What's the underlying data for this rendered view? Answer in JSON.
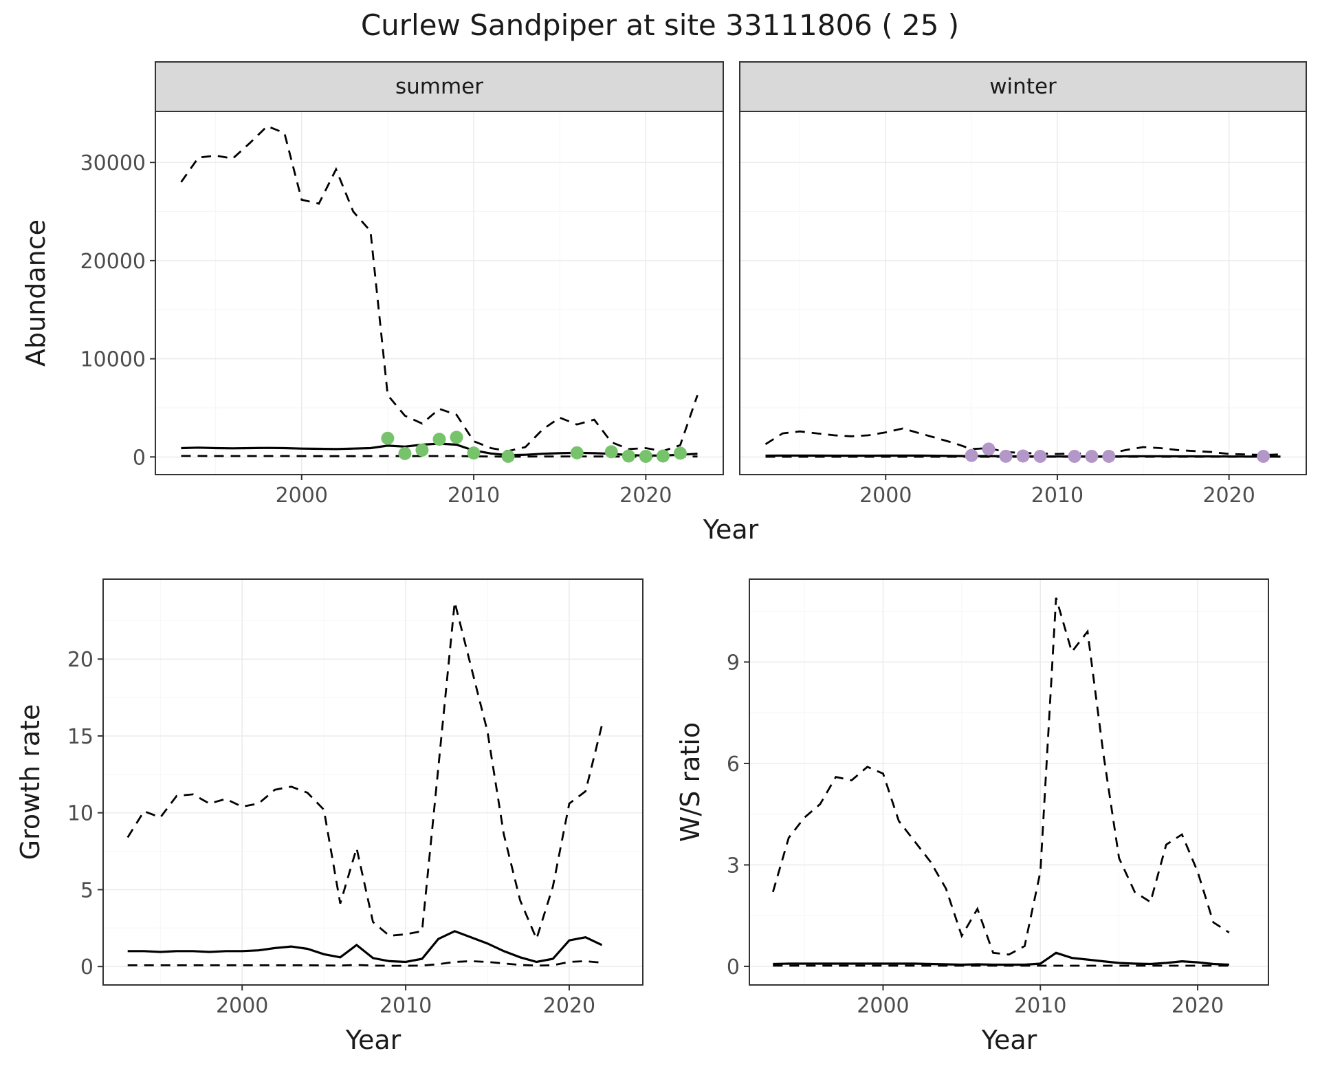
{
  "figure": {
    "title": "Curlew Sandpiper at site 33111806 ( 25 )"
  },
  "colors": {
    "summer_points": "#77C36B",
    "winter_points": "#B497C9",
    "line": "#000000",
    "strip_bg": "#D9D9D9",
    "panel_bg": "#FFFFFF",
    "grid_major": "#EBEBEB",
    "grid_minor": "#F6F6F6",
    "panel_border": "#333333",
    "axis_text": "#4D4D4D",
    "title_text": "#1A1A1A"
  },
  "chart_data": [
    {
      "id": "abundance-by-season",
      "type": "line",
      "xlabel": "Year",
      "ylabel": "Abundance",
      "xlim": [
        1991.5,
        2024.5
      ],
      "ylim": [
        -1800,
        35200
      ],
      "xticks": [
        2000,
        2010,
        2020
      ],
      "yticks": [
        0,
        10000,
        20000,
        30000
      ],
      "grid": true,
      "legend": "none",
      "series_styles": {
        "upper_ci": "dashed",
        "median": "solid",
        "lower_ci": "dashed"
      },
      "facets": [
        {
          "label": "summer",
          "point_color": "#77C36B",
          "years": [
            1993,
            1994,
            1995,
            1996,
            1997,
            1998,
            1999,
            2000,
            2001,
            2002,
            2003,
            2004,
            2005,
            2006,
            2007,
            2008,
            2009,
            2010,
            2011,
            2012,
            2013,
            2014,
            2015,
            2016,
            2017,
            2018,
            2019,
            2020,
            2021,
            2022,
            2023
          ],
          "upper_ci": [
            28000,
            30500,
            30700,
            30400,
            32000,
            33700,
            33000,
            26200,
            25800,
            29300,
            25000,
            23000,
            6300,
            4200,
            3400,
            4900,
            4300,
            1600,
            900,
            600,
            1000,
            2800,
            4000,
            3300,
            3800,
            1500,
            800,
            900,
            600,
            1200,
            6300
          ],
          "median": [
            900,
            950,
            900,
            880,
            900,
            920,
            900,
            850,
            830,
            800,
            850,
            900,
            1150,
            1050,
            1250,
            1350,
            1250,
            650,
            350,
            180,
            220,
            320,
            380,
            420,
            380,
            320,
            180,
            140,
            140,
            220,
            320
          ],
          "lower_ci": [
            100,
            100,
            95,
            95,
            95,
            95,
            90,
            85,
            80,
            80,
            80,
            85,
            90,
            85,
            90,
            95,
            90,
            60,
            40,
            25,
            30,
            40,
            45,
            50,
            45,
            40,
            25,
            20,
            20,
            30,
            40
          ],
          "observations": {
            "x": [
              2005,
              2006,
              2007,
              2008,
              2009,
              2010,
              2012,
              2016,
              2018,
              2019,
              2020,
              2021,
              2022
            ],
            "y": [
              1900,
              350,
              700,
              1800,
              2000,
              400,
              60,
              420,
              520,
              90,
              60,
              90,
              380
            ]
          }
        },
        {
          "label": "winter",
          "point_color": "#B497C9",
          "years": [
            1993,
            1994,
            1995,
            1996,
            1997,
            1998,
            1999,
            2000,
            2001,
            2002,
            2003,
            2004,
            2005,
            2006,
            2007,
            2008,
            2009,
            2010,
            2011,
            2012,
            2013,
            2014,
            2015,
            2016,
            2017,
            2018,
            2019,
            2020,
            2021,
            2022,
            2023
          ],
          "upper_ci": [
            1300,
            2400,
            2600,
            2400,
            2200,
            2100,
            2200,
            2500,
            2900,
            2400,
            1900,
            1400,
            800,
            900,
            500,
            400,
            350,
            300,
            350,
            300,
            350,
            700,
            1000,
            900,
            700,
            600,
            500,
            300,
            250,
            200,
            250
          ],
          "median": [
            130,
            140,
            140,
            135,
            130,
            130,
            130,
            135,
            140,
            135,
            120,
            100,
            80,
            90,
            60,
            50,
            45,
            40,
            45,
            40,
            45,
            60,
            70,
            65,
            60,
            55,
            50,
            40,
            35,
            30,
            35
          ],
          "lower_ci": [
            15,
            15,
            15,
            15,
            15,
            15,
            15,
            15,
            15,
            15,
            15,
            15,
            15,
            15,
            15,
            15,
            15,
            15,
            15,
            15,
            15,
            15,
            15,
            15,
            15,
            15,
            15,
            15,
            15,
            15,
            15
          ],
          "observations": {
            "x": [
              2005,
              2006,
              2007,
              2008,
              2009,
              2011,
              2012,
              2013,
              2022
            ],
            "y": [
              150,
              800,
              70,
              90,
              60,
              60,
              60,
              60,
              60
            ]
          }
        }
      ]
    },
    {
      "id": "growth-rate",
      "type": "line",
      "xlabel": "Year",
      "ylabel": "Growth rate",
      "xlim": [
        1991.5,
        2024.5
      ],
      "ylim": [
        -1.2,
        25.2
      ],
      "xticks": [
        2000,
        2010,
        2020
      ],
      "yticks": [
        0,
        5,
        10,
        15,
        20
      ],
      "grid": true,
      "legend": "none",
      "series_styles": {
        "upper_ci": "dashed",
        "median": "solid",
        "lower_ci": "dashed"
      },
      "years": [
        1993,
        1994,
        1995,
        1996,
        1997,
        1998,
        1999,
        2000,
        2001,
        2002,
        2003,
        2004,
        2005,
        2006,
        2007,
        2008,
        2009,
        2010,
        2011,
        2012,
        2013,
        2014,
        2015,
        2016,
        2017,
        2018,
        2019,
        2020,
        2021,
        2022
      ],
      "upper_ci": [
        8.4,
        10.1,
        9.7,
        11.1,
        11.2,
        10.6,
        10.9,
        10.4,
        10.6,
        11.5,
        11.7,
        11.3,
        10.2,
        4.1,
        7.7,
        2.9,
        2.0,
        2.1,
        2.3,
        13.0,
        23.7,
        19.5,
        15.3,
        8.6,
        4.3,
        1.8,
        5.2,
        10.6,
        11.4,
        15.7
      ],
      "median": [
        1.0,
        1.0,
        0.95,
        1.0,
        1.0,
        0.95,
        1.0,
        1.0,
        1.05,
        1.2,
        1.3,
        1.15,
        0.8,
        0.6,
        1.4,
        0.55,
        0.35,
        0.3,
        0.5,
        1.8,
        2.3,
        1.9,
        1.5,
        1.0,
        0.6,
        0.3,
        0.5,
        1.7,
        1.9,
        1.4
      ],
      "lower_ci": [
        0.08,
        0.08,
        0.08,
        0.08,
        0.08,
        0.08,
        0.08,
        0.08,
        0.08,
        0.08,
        0.08,
        0.08,
        0.07,
        0.06,
        0.1,
        0.06,
        0.05,
        0.05,
        0.06,
        0.15,
        0.3,
        0.35,
        0.3,
        0.2,
        0.1,
        0.06,
        0.08,
        0.3,
        0.35,
        0.25
      ]
    },
    {
      "id": "winter-summer-ratio",
      "type": "line",
      "xlabel": "Year",
      "ylabel": "W/S ratio",
      "xlim": [
        1991.5,
        2024.5
      ],
      "ylim": [
        -0.55,
        11.45
      ],
      "xticks": [
        2000,
        2010,
        2020
      ],
      "yticks": [
        0,
        3,
        6,
        9
      ],
      "grid": true,
      "legend": "none",
      "series_styles": {
        "upper_ci": "dashed",
        "median": "solid",
        "lower_ci": "dashed"
      },
      "years": [
        1993,
        1994,
        1995,
        1996,
        1997,
        1998,
        1999,
        2000,
        2001,
        2002,
        2003,
        2004,
        2005,
        2006,
        2007,
        2008,
        2009,
        2010,
        2011,
        2012,
        2013,
        2014,
        2015,
        2016,
        2017,
        2018,
        2019,
        2020,
        2021,
        2022
      ],
      "upper_ci": [
        2.2,
        3.8,
        4.4,
        4.8,
        5.6,
        5.5,
        5.9,
        5.7,
        4.3,
        3.7,
        3.1,
        2.3,
        0.9,
        1.7,
        0.4,
        0.35,
        0.6,
        2.8,
        10.9,
        9.3,
        9.9,
        6.3,
        3.2,
        2.2,
        1.9,
        3.6,
        3.9,
        2.8,
        1.3,
        1.0
      ],
      "median": [
        0.07,
        0.08,
        0.08,
        0.08,
        0.08,
        0.08,
        0.08,
        0.08,
        0.08,
        0.08,
        0.07,
        0.06,
        0.05,
        0.06,
        0.05,
        0.05,
        0.05,
        0.08,
        0.4,
        0.25,
        0.2,
        0.15,
        0.1,
        0.08,
        0.07,
        0.1,
        0.15,
        0.12,
        0.07,
        0.05
      ],
      "lower_ci": [
        0.02,
        0.02,
        0.02,
        0.02,
        0.02,
        0.02,
        0.02,
        0.02,
        0.02,
        0.02,
        0.02,
        0.02,
        0.02,
        0.02,
        0.02,
        0.02,
        0.02,
        0.02,
        0.02,
        0.02,
        0.02,
        0.02,
        0.02,
        0.02,
        0.02,
        0.02,
        0.02,
        0.02,
        0.02,
        0.02
      ]
    }
  ]
}
